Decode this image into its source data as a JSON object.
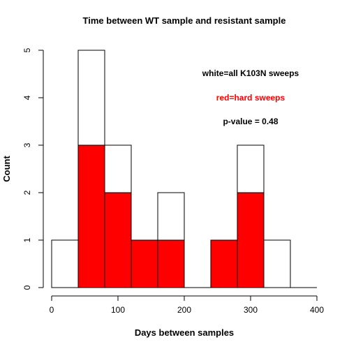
{
  "chart_data": {
    "type": "bar",
    "title": "Time between WT sample and resistant sample",
    "xlabel": "Days between samples",
    "ylabel": "Count",
    "xlim": [
      0,
      400
    ],
    "ylim": [
      0,
      5
    ],
    "xticks": [
      0,
      100,
      200,
      300,
      400
    ],
    "yticks": [
      0,
      1,
      2,
      3,
      4,
      5
    ],
    "bins": [
      [
        0,
        40
      ],
      [
        40,
        80
      ],
      [
        80,
        120
      ],
      [
        120,
        160
      ],
      [
        160,
        200
      ],
      [
        200,
        240
      ],
      [
        240,
        280
      ],
      [
        280,
        320
      ],
      [
        320,
        360
      ],
      [
        360,
        400
      ]
    ],
    "series": [
      {
        "values": [
          1,
          5,
          3,
          1,
          2,
          0,
          1,
          3,
          1,
          0
        ],
        "color": "#ffffff"
      },
      {
        "values": [
          0,
          3,
          2,
          1,
          1,
          0,
          1,
          2,
          0,
          0
        ],
        "color": "#ff0000"
      }
    ],
    "annotations": [
      {
        "text": "white=all K103N sweeps",
        "color": "#000000"
      },
      {
        "text": "red=hard sweeps",
        "color": "#ff0000"
      },
      {
        "text": "p-value = 0.48",
        "color": "#000000"
      }
    ],
    "grid": false
  }
}
